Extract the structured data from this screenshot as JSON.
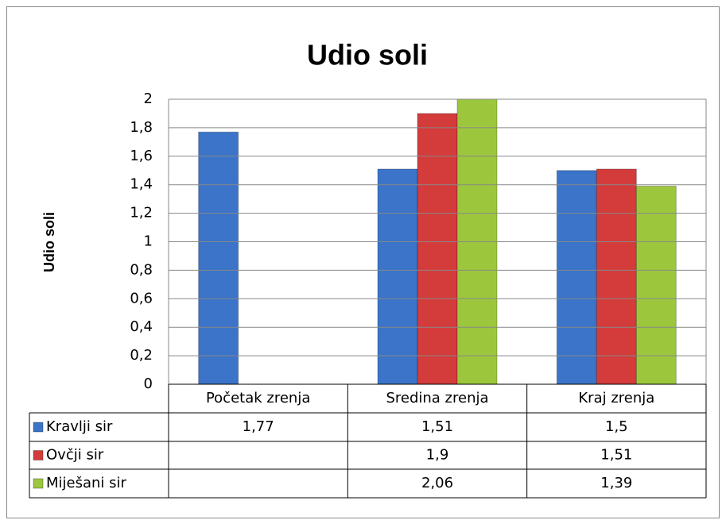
{
  "chart_data": {
    "type": "bar",
    "title": "Udio soli",
    "y_label": "Udio soli",
    "categories": [
      "Početak zrenja",
      "Sredina zrenja",
      "Kraj zrenja"
    ],
    "series": [
      {
        "name": "Kravlji sir",
        "color": "#3b74c8",
        "values": [
          1.77,
          1.51,
          1.5
        ],
        "value_labels": [
          "1,77",
          "1,51",
          "1,5"
        ]
      },
      {
        "name": "Ovčji sir",
        "color": "#d43b3b",
        "values": [
          null,
          1.9,
          1.51
        ],
        "value_labels": [
          null,
          "1,9",
          "1,51"
        ]
      },
      {
        "name": "Miješani sir",
        "color": "#9cc73d",
        "values": [
          null,
          2.06,
          1.39
        ],
        "value_labels": [
          null,
          "2,06",
          "1,39"
        ]
      }
    ],
    "ylim": [
      0,
      2
    ],
    "yticks": [
      0,
      {
        "value": 0.2,
        "label": "0,2"
      },
      {
        "value": 0.4,
        "label": "0,4"
      },
      {
        "value": 0.6,
        "label": "0,6"
      },
      {
        "value": 0.8,
        "label": "0,8"
      },
      1,
      {
        "value": 1.2,
        "label": "1,2"
      },
      {
        "value": 1.4,
        "label": "1,4"
      },
      {
        "value": 1.6,
        "label": "1,6"
      },
      {
        "value": 1.8,
        "label": "1,8"
      },
      2
    ],
    "grid": true,
    "legend": "table"
  }
}
